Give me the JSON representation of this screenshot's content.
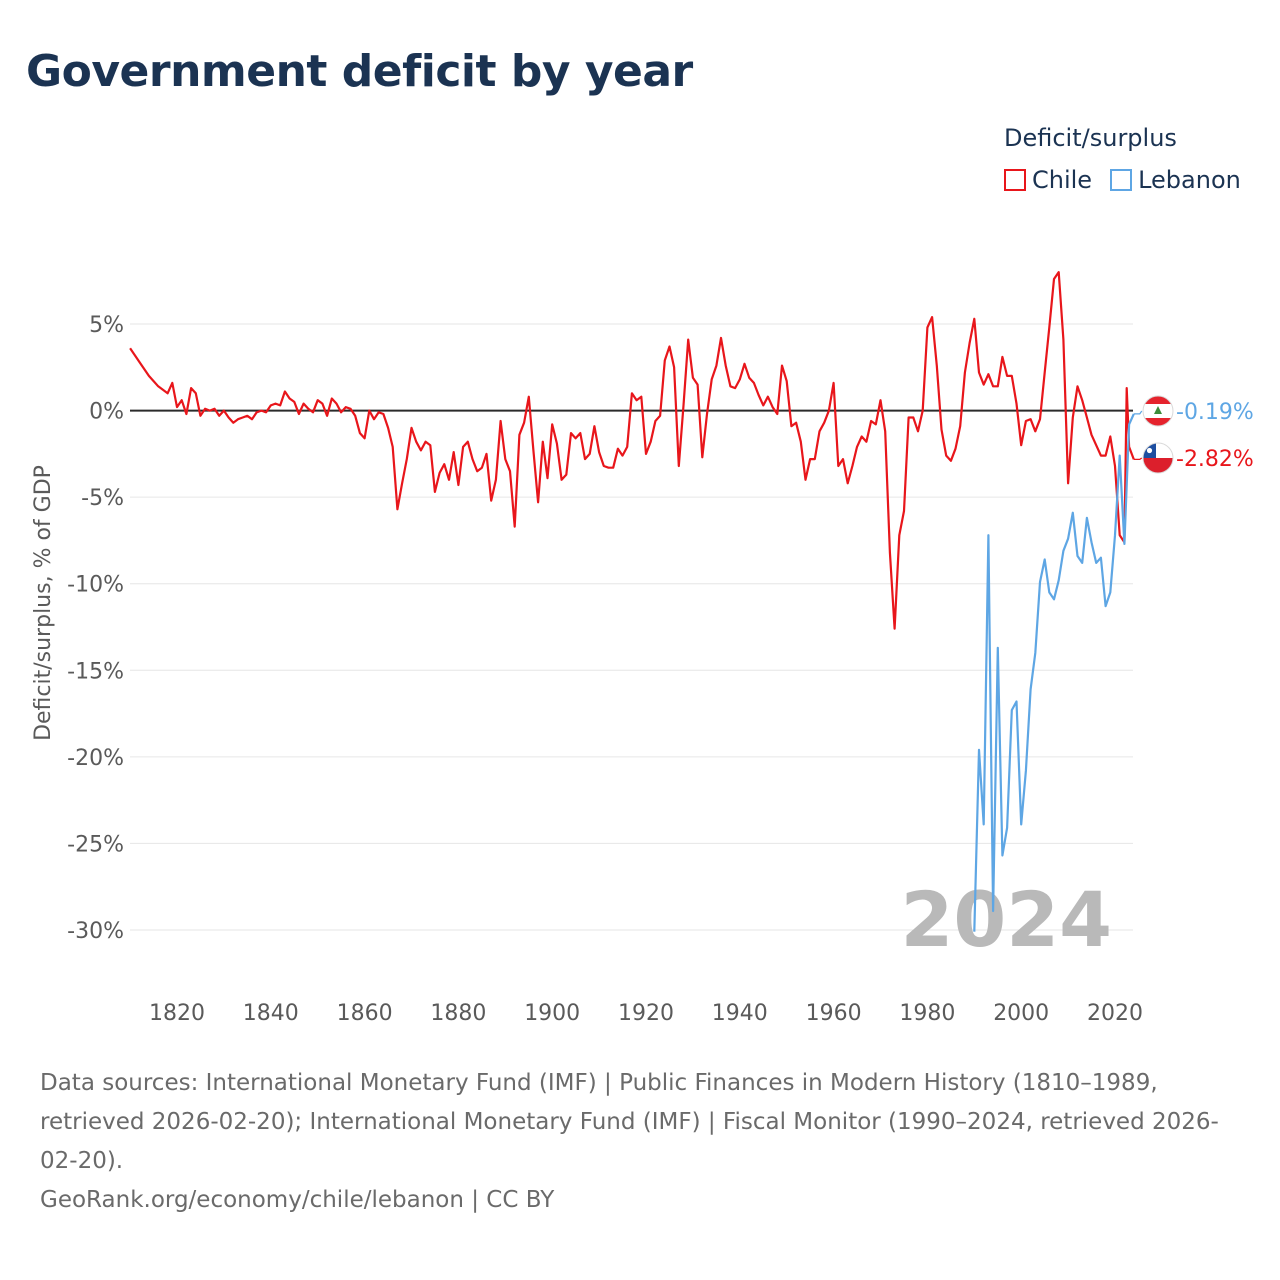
{
  "title": "Government deficit by year",
  "legend": {
    "title": "Deficit/surplus",
    "items": [
      {
        "label": "Chile",
        "color": "#e8161b"
      },
      {
        "label": "Lebanon",
        "color": "#5ea6e4"
      }
    ]
  },
  "footer": {
    "sources": "Data sources: International Monetary Fund (IMF) | Public Finances in Modern History (1810–1989, retrieved 2026-02-20); International Monetary Fund (IMF) | Fiscal Monitor (1990–2024, retrieved 2026-02-20).",
    "credit": "GeoRank.org/economy/chile/lebanon | CC BY"
  },
  "chart_data": {
    "type": "line",
    "title": "Government deficit by year",
    "xlabel": "",
    "ylabel": "Deficit/surplus, % of GDP",
    "xlim": [
      1810,
      2024
    ],
    "ylim": [
      -32,
      8
    ],
    "x_ticks": [
      1820,
      1840,
      1860,
      1880,
      1900,
      1920,
      1940,
      1960,
      1980,
      2000,
      2020
    ],
    "x_tick_labels": [
      "1820",
      "1840",
      "1860",
      "1880",
      "1900",
      "1920",
      "1940",
      "1960",
      "1980",
      "2000",
      "2020"
    ],
    "y_ticks": [
      5,
      0,
      -5,
      -10,
      -15,
      -20,
      -25,
      -30
    ],
    "y_tick_labels": [
      "5%",
      "0%",
      "-5%",
      "-10%",
      "-15%",
      "-20%",
      "-25%",
      "-30%"
    ],
    "grid": true,
    "year_watermark": "2024",
    "series": [
      {
        "name": "Chile",
        "color": "#e8161b",
        "end_label": "-2.82%",
        "end_value": -2.82,
        "points": [
          [
            1810,
            3.6
          ],
          [
            1812,
            2.8
          ],
          [
            1814,
            2.0
          ],
          [
            1816,
            1.4
          ],
          [
            1818,
            1.0
          ],
          [
            1819,
            1.6
          ],
          [
            1820,
            0.2
          ],
          [
            1821,
            0.6
          ],
          [
            1822,
            -0.2
          ],
          [
            1823,
            1.3
          ],
          [
            1824,
            1.0
          ],
          [
            1825,
            -0.3
          ],
          [
            1826,
            0.1
          ],
          [
            1827,
            0.0
          ],
          [
            1828,
            0.1
          ],
          [
            1829,
            -0.3
          ],
          [
            1830,
            0.0
          ],
          [
            1831,
            -0.4
          ],
          [
            1832,
            -0.7
          ],
          [
            1833,
            -0.5
          ],
          [
            1834,
            -0.4
          ],
          [
            1835,
            -0.3
          ],
          [
            1836,
            -0.5
          ],
          [
            1837,
            -0.1
          ],
          [
            1838,
            0.0
          ],
          [
            1839,
            -0.1
          ],
          [
            1840,
            0.3
          ],
          [
            1841,
            0.4
          ],
          [
            1842,
            0.3
          ],
          [
            1843,
            1.1
          ],
          [
            1844,
            0.7
          ],
          [
            1845,
            0.5
          ],
          [
            1846,
            -0.2
          ],
          [
            1847,
            0.4
          ],
          [
            1848,
            0.1
          ],
          [
            1849,
            -0.1
          ],
          [
            1850,
            0.6
          ],
          [
            1851,
            0.4
          ],
          [
            1852,
            -0.3
          ],
          [
            1853,
            0.7
          ],
          [
            1854,
            0.4
          ],
          [
            1855,
            -0.1
          ],
          [
            1856,
            0.2
          ],
          [
            1857,
            0.1
          ],
          [
            1858,
            -0.3
          ],
          [
            1859,
            -1.3
          ],
          [
            1860,
            -1.6
          ],
          [
            1861,
            0.0
          ],
          [
            1862,
            -0.5
          ],
          [
            1863,
            -0.1
          ],
          [
            1864,
            -0.2
          ],
          [
            1865,
            -1.0
          ],
          [
            1866,
            -2.1
          ],
          [
            1867,
            -5.7
          ],
          [
            1868,
            -4.2
          ],
          [
            1869,
            -2.8
          ],
          [
            1870,
            -1.0
          ],
          [
            1871,
            -1.8
          ],
          [
            1872,
            -2.3
          ],
          [
            1873,
            -1.8
          ],
          [
            1874,
            -2.0
          ],
          [
            1875,
            -4.7
          ],
          [
            1876,
            -3.6
          ],
          [
            1877,
            -3.1
          ],
          [
            1878,
            -4.0
          ],
          [
            1879,
            -2.4
          ],
          [
            1880,
            -4.3
          ],
          [
            1881,
            -2.1
          ],
          [
            1882,
            -1.8
          ],
          [
            1883,
            -2.8
          ],
          [
            1884,
            -3.5
          ],
          [
            1885,
            -3.3
          ],
          [
            1886,
            -2.5
          ],
          [
            1887,
            -5.2
          ],
          [
            1888,
            -4.0
          ],
          [
            1889,
            -0.6
          ],
          [
            1890,
            -2.8
          ],
          [
            1891,
            -3.5
          ],
          [
            1892,
            -6.7
          ],
          [
            1893,
            -1.4
          ],
          [
            1894,
            -0.7
          ],
          [
            1895,
            0.8
          ],
          [
            1896,
            -2.3
          ],
          [
            1897,
            -5.3
          ],
          [
            1898,
            -1.8
          ],
          [
            1899,
            -3.9
          ],
          [
            1900,
            -0.8
          ],
          [
            1901,
            -1.9
          ],
          [
            1902,
            -4.0
          ],
          [
            1903,
            -3.7
          ],
          [
            1904,
            -1.3
          ],
          [
            1905,
            -1.6
          ],
          [
            1906,
            -1.3
          ],
          [
            1907,
            -2.8
          ],
          [
            1908,
            -2.5
          ],
          [
            1909,
            -0.9
          ],
          [
            1910,
            -2.4
          ],
          [
            1911,
            -3.2
          ],
          [
            1912,
            -3.3
          ],
          [
            1913,
            -3.3
          ],
          [
            1914,
            -2.2
          ],
          [
            1915,
            -2.6
          ],
          [
            1916,
            -2.1
          ],
          [
            1917,
            1.0
          ],
          [
            1918,
            0.6
          ],
          [
            1919,
            0.8
          ],
          [
            1920,
            -2.5
          ],
          [
            1921,
            -1.8
          ],
          [
            1922,
            -0.6
          ],
          [
            1923,
            -0.3
          ],
          [
            1924,
            2.9
          ],
          [
            1925,
            3.7
          ],
          [
            1926,
            2.5
          ],
          [
            1927,
            -3.2
          ],
          [
            1928,
            0.3
          ],
          [
            1929,
            4.1
          ],
          [
            1930,
            1.9
          ],
          [
            1931,
            1.5
          ],
          [
            1932,
            -2.7
          ],
          [
            1933,
            -0.2
          ],
          [
            1934,
            1.8
          ],
          [
            1935,
            2.6
          ],
          [
            1936,
            4.2
          ],
          [
            1937,
            2.6
          ],
          [
            1938,
            1.4
          ],
          [
            1939,
            1.3
          ],
          [
            1940,
            1.8
          ],
          [
            1941,
            2.7
          ],
          [
            1942,
            1.9
          ],
          [
            1943,
            1.6
          ],
          [
            1944,
            0.9
          ],
          [
            1945,
            0.3
          ],
          [
            1946,
            0.8
          ],
          [
            1947,
            0.2
          ],
          [
            1948,
            -0.2
          ],
          [
            1949,
            2.6
          ],
          [
            1950,
            1.7
          ],
          [
            1951,
            -0.9
          ],
          [
            1952,
            -0.7
          ],
          [
            1953,
            -1.8
          ],
          [
            1954,
            -4.0
          ],
          [
            1955,
            -2.8
          ],
          [
            1956,
            -2.8
          ],
          [
            1957,
            -1.2
          ],
          [
            1958,
            -0.7
          ],
          [
            1959,
            0.0
          ],
          [
            1960,
            1.6
          ],
          [
            1961,
            -3.2
          ],
          [
            1962,
            -2.8
          ],
          [
            1963,
            -4.2
          ],
          [
            1964,
            -3.2
          ],
          [
            1965,
            -2.1
          ],
          [
            1966,
            -1.5
          ],
          [
            1967,
            -1.8
          ],
          [
            1968,
            -0.6
          ],
          [
            1969,
            -0.8
          ],
          [
            1970,
            0.6
          ],
          [
            1971,
            -1.2
          ],
          [
            1972,
            -8.2
          ],
          [
            1973,
            -12.6
          ],
          [
            1974,
            -7.2
          ],
          [
            1975,
            -5.8
          ],
          [
            1976,
            -0.4
          ],
          [
            1977,
            -0.4
          ],
          [
            1978,
            -1.2
          ],
          [
            1979,
            0.0
          ],
          [
            1980,
            4.8
          ],
          [
            1981,
            5.4
          ],
          [
            1982,
            2.6
          ],
          [
            1983,
            -1.1
          ],
          [
            1984,
            -2.6
          ],
          [
            1985,
            -2.9
          ],
          [
            1986,
            -2.2
          ],
          [
            1987,
            -0.9
          ],
          [
            1988,
            2.2
          ],
          [
            1989,
            3.9
          ],
          [
            1990,
            5.3
          ],
          [
            1991,
            2.2
          ],
          [
            1992,
            1.5
          ],
          [
            1993,
            2.1
          ],
          [
            1994,
            1.4
          ],
          [
            1995,
            1.4
          ],
          [
            1996,
            3.1
          ],
          [
            1997,
            2.0
          ],
          [
            1998,
            2.0
          ],
          [
            1999,
            0.4
          ],
          [
            2000,
            -2.0
          ],
          [
            2001,
            -0.6
          ],
          [
            2002,
            -0.5
          ],
          [
            2003,
            -1.2
          ],
          [
            2004,
            -0.5
          ],
          [
            2005,
            2.2
          ],
          [
            2006,
            4.8
          ],
          [
            2007,
            7.6
          ],
          [
            2008,
            8.0
          ],
          [
            2009,
            4.1
          ],
          [
            2010,
            -4.2
          ],
          [
            2011,
            -0.4
          ],
          [
            2012,
            1.4
          ],
          [
            2013,
            0.6
          ],
          [
            2014,
            -0.4
          ],
          [
            2015,
            -1.4
          ],
          [
            2016,
            -2.0
          ],
          [
            2017,
            -2.6
          ],
          [
            2018,
            -2.6
          ],
          [
            2019,
            -1.5
          ],
          [
            2020,
            -3.2
          ],
          [
            2021,
            -7.2
          ],
          [
            2022,
            -7.6
          ],
          [
            2022.5,
            1.3
          ],
          [
            2023,
            -2.1
          ],
          [
            2024,
            -2.82
          ]
        ]
      },
      {
        "name": "Lebanon",
        "color": "#5ea6e4",
        "end_label": "-0.19%",
        "end_value": -0.19,
        "points": [
          [
            1990,
            -30.1
          ],
          [
            1991,
            -19.6
          ],
          [
            1992,
            -23.9
          ],
          [
            1993,
            -7.2
          ],
          [
            1994,
            -28.9
          ],
          [
            1995,
            -13.7
          ],
          [
            1996,
            -25.7
          ],
          [
            1997,
            -24.1
          ],
          [
            1998,
            -17.3
          ],
          [
            1999,
            -16.8
          ],
          [
            2000,
            -23.9
          ],
          [
            2001,
            -20.8
          ],
          [
            2002,
            -16.1
          ],
          [
            2003,
            -14.0
          ],
          [
            2004,
            -9.9
          ],
          [
            2005,
            -8.6
          ],
          [
            2006,
            -10.5
          ],
          [
            2007,
            -10.9
          ],
          [
            2008,
            -9.8
          ],
          [
            2009,
            -8.1
          ],
          [
            2010,
            -7.4
          ],
          [
            2011,
            -5.9
          ],
          [
            2012,
            -8.4
          ],
          [
            2013,
            -8.8
          ],
          [
            2014,
            -6.2
          ],
          [
            2015,
            -7.6
          ],
          [
            2016,
            -8.8
          ],
          [
            2017,
            -8.5
          ],
          [
            2018,
            -11.3
          ],
          [
            2019,
            -10.5
          ],
          [
            2020,
            -7.2
          ],
          [
            2021,
            -2.6
          ],
          [
            2022,
            -7.7
          ],
          [
            2023,
            -0.8
          ],
          [
            2024,
            -0.19
          ]
        ]
      }
    ]
  }
}
